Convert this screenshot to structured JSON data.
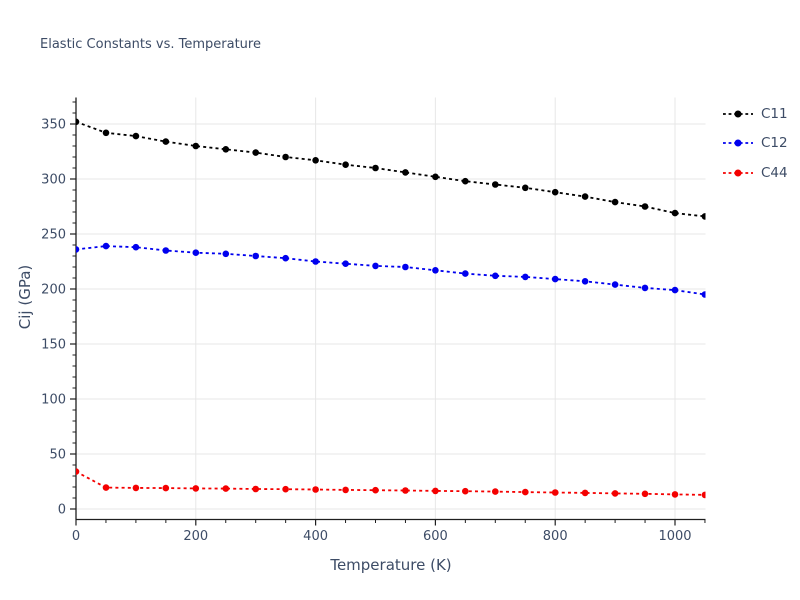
{
  "chart_data": {
    "type": "line",
    "title": "Elastic Constants vs. Temperature",
    "xlabel": "Temperature (K)",
    "ylabel": "Cij (GPa)",
    "x": [
      0,
      50,
      100,
      150,
      200,
      250,
      300,
      350,
      400,
      450,
      500,
      550,
      600,
      650,
      700,
      750,
      800,
      850,
      900,
      950,
      1000,
      1050
    ],
    "series": [
      {
        "name": "C11",
        "color": "#000000",
        "values": [
          352,
          342,
          339,
          334,
          330,
          327,
          324,
          320,
          317,
          313,
          310,
          306,
          302,
          298,
          295,
          292,
          288,
          284,
          279,
          275,
          269,
          266
        ]
      },
      {
        "name": "C12",
        "color": "#0000ee",
        "values": [
          236,
          239,
          238,
          235,
          233,
          232,
          230,
          228,
          225,
          223,
          221,
          220,
          217,
          214,
          212,
          211,
          209,
          207,
          204,
          201,
          199,
          195
        ]
      },
      {
        "name": "C44",
        "color": "#f40000",
        "values": [
          34,
          19.5,
          19.2,
          19,
          18.7,
          18.5,
          18.2,
          18,
          17.7,
          17.4,
          17.1,
          16.8,
          16.5,
          16.2,
          15.8,
          15.4,
          15,
          14.6,
          14.2,
          13.8,
          13.3,
          12.8
        ]
      }
    ],
    "xticks": [
      0,
      200,
      400,
      600,
      800,
      1000
    ],
    "yticks": [
      0,
      50,
      100,
      150,
      200,
      250,
      300,
      350
    ],
    "x_minor_step": 50,
    "y_minor_step": 10,
    "xlim": [
      0,
      1050
    ],
    "ylim": [
      -9,
      374
    ],
    "grid": true,
    "line_style": "dotted",
    "marker": "circle",
    "legend_position": "top-right-outside"
  },
  "styles": {
    "text_color": "#3d4c66",
    "grid_color": "#e7e7e7",
    "spine_color": "#1f1f1f",
    "background": "#ffffff"
  }
}
